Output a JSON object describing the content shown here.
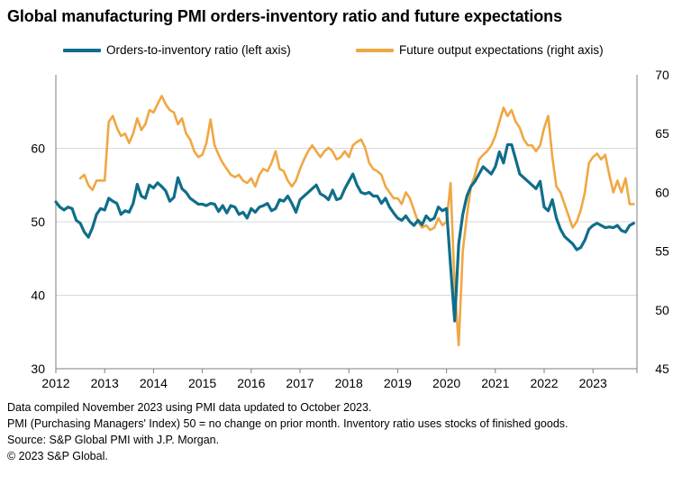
{
  "title": "Global manufacturing PMI orders-inventory ratio and future expectations",
  "colors": {
    "series_orders": "#0f6e8a",
    "series_future": "#f0a742",
    "axis": "#7f7f7f",
    "gridline": "#d9d9d9"
  },
  "notes": [
    "Data compiled November 2023 using PMI data updated to October 2023.",
    "PMI (Purchasing Managers' Index) 50 = no change on prior month. Inventory ratio uses stocks of finished goods.",
    "Source: S&P Global PMI with J.P. Morgan.",
    "© 2023 S&P Global."
  ],
  "chart_data": {
    "type": "line",
    "title": "Global manufacturing PMI orders-inventory ratio and future expectations",
    "x_ticks": [
      "2012",
      "2013",
      "2014",
      "2015",
      "2016",
      "2017",
      "2018",
      "2019",
      "2020",
      "2021",
      "2022",
      "2023"
    ],
    "x_range": [
      2012.0,
      2023.9
    ],
    "ylim_left": [
      30,
      70
    ],
    "yticks_left": [
      30,
      40,
      50,
      60
    ],
    "ylim_right": [
      45,
      70
    ],
    "yticks_right": [
      45,
      50,
      55,
      60,
      65,
      70
    ],
    "grid": "horizontal at left-axis 40, 50 and 60",
    "legend_position": "top",
    "series": [
      {
        "name": "Orders-to-inventory ratio (left axis)",
        "axis": "left",
        "color": "#0f6e8a",
        "points": [
          [
            2012.0,
            52.7
          ],
          [
            2012.083,
            52.0
          ],
          [
            2012.167,
            51.6
          ],
          [
            2012.25,
            52.0
          ],
          [
            2012.333,
            51.8
          ],
          [
            2012.417,
            50.2
          ],
          [
            2012.5,
            49.8
          ],
          [
            2012.583,
            48.6
          ],
          [
            2012.667,
            47.9
          ],
          [
            2012.75,
            49.2
          ],
          [
            2012.833,
            51.0
          ],
          [
            2012.917,
            51.8
          ],
          [
            2013.0,
            51.6
          ],
          [
            2013.083,
            53.2
          ],
          [
            2013.167,
            52.8
          ],
          [
            2013.25,
            52.5
          ],
          [
            2013.333,
            51.0
          ],
          [
            2013.417,
            51.5
          ],
          [
            2013.5,
            51.3
          ],
          [
            2013.583,
            52.5
          ],
          [
            2013.667,
            55.1
          ],
          [
            2013.75,
            53.5
          ],
          [
            2013.833,
            53.2
          ],
          [
            2013.917,
            55.0
          ],
          [
            2014.0,
            54.6
          ],
          [
            2014.083,
            55.3
          ],
          [
            2014.167,
            54.8
          ],
          [
            2014.25,
            54.2
          ],
          [
            2014.333,
            52.8
          ],
          [
            2014.417,
            53.3
          ],
          [
            2014.5,
            56.0
          ],
          [
            2014.583,
            54.5
          ],
          [
            2014.667,
            54.0
          ],
          [
            2014.75,
            53.2
          ],
          [
            2014.833,
            52.8
          ],
          [
            2014.917,
            52.4
          ],
          [
            2015.0,
            52.4
          ],
          [
            2015.083,
            52.2
          ],
          [
            2015.167,
            52.5
          ],
          [
            2015.25,
            52.4
          ],
          [
            2015.333,
            51.4
          ],
          [
            2015.417,
            52.2
          ],
          [
            2015.5,
            51.2
          ],
          [
            2015.583,
            52.2
          ],
          [
            2015.667,
            52.0
          ],
          [
            2015.75,
            51.0
          ],
          [
            2015.833,
            51.3
          ],
          [
            2015.917,
            50.5
          ],
          [
            2016.0,
            51.8
          ],
          [
            2016.083,
            51.3
          ],
          [
            2016.167,
            52.0
          ],
          [
            2016.25,
            52.2
          ],
          [
            2016.333,
            52.5
          ],
          [
            2016.417,
            51.5
          ],
          [
            2016.5,
            51.8
          ],
          [
            2016.583,
            53.0
          ],
          [
            2016.667,
            52.8
          ],
          [
            2016.75,
            53.5
          ],
          [
            2016.833,
            52.5
          ],
          [
            2016.917,
            51.3
          ],
          [
            2017.0,
            53.0
          ],
          [
            2017.083,
            53.5
          ],
          [
            2017.167,
            54.0
          ],
          [
            2017.25,
            54.5
          ],
          [
            2017.333,
            55.0
          ],
          [
            2017.417,
            53.8
          ],
          [
            2017.5,
            53.5
          ],
          [
            2017.583,
            53.0
          ],
          [
            2017.667,
            54.3
          ],
          [
            2017.75,
            53.0
          ],
          [
            2017.833,
            53.2
          ],
          [
            2017.917,
            54.5
          ],
          [
            2018.0,
            55.5
          ],
          [
            2018.083,
            56.5
          ],
          [
            2018.167,
            55.0
          ],
          [
            2018.25,
            54.0
          ],
          [
            2018.333,
            53.8
          ],
          [
            2018.417,
            54.0
          ],
          [
            2018.5,
            53.5
          ],
          [
            2018.583,
            53.5
          ],
          [
            2018.667,
            52.5
          ],
          [
            2018.75,
            53.2
          ],
          [
            2018.833,
            52.0
          ],
          [
            2018.917,
            51.2
          ],
          [
            2019.0,
            50.5
          ],
          [
            2019.083,
            50.2
          ],
          [
            2019.167,
            50.8
          ],
          [
            2019.25,
            50.0
          ],
          [
            2019.333,
            49.5
          ],
          [
            2019.417,
            50.2
          ],
          [
            2019.5,
            49.6
          ],
          [
            2019.583,
            50.8
          ],
          [
            2019.667,
            50.2
          ],
          [
            2019.75,
            50.5
          ],
          [
            2019.833,
            52.0
          ],
          [
            2019.917,
            51.5
          ],
          [
            2020.0,
            51.8
          ],
          [
            2020.083,
            44.0
          ],
          [
            2020.167,
            36.5
          ],
          [
            2020.25,
            47.0
          ],
          [
            2020.333,
            51.0
          ],
          [
            2020.417,
            53.5
          ],
          [
            2020.5,
            54.8
          ],
          [
            2020.583,
            55.5
          ],
          [
            2020.667,
            56.5
          ],
          [
            2020.75,
            57.5
          ],
          [
            2020.833,
            57.0
          ],
          [
            2020.917,
            56.5
          ],
          [
            2021.0,
            57.5
          ],
          [
            2021.083,
            59.5
          ],
          [
            2021.167,
            58.0
          ],
          [
            2021.25,
            60.5
          ],
          [
            2021.333,
            60.5
          ],
          [
            2021.417,
            58.5
          ],
          [
            2021.5,
            56.5
          ],
          [
            2021.583,
            56.0
          ],
          [
            2021.667,
            55.5
          ],
          [
            2021.75,
            55.0
          ],
          [
            2021.833,
            54.5
          ],
          [
            2021.917,
            55.5
          ],
          [
            2022.0,
            52.0
          ],
          [
            2022.083,
            51.5
          ],
          [
            2022.167,
            53.0
          ],
          [
            2022.25,
            50.5
          ],
          [
            2022.333,
            49.0
          ],
          [
            2022.417,
            48.0
          ],
          [
            2022.5,
            47.5
          ],
          [
            2022.583,
            47.0
          ],
          [
            2022.667,
            46.2
          ],
          [
            2022.75,
            46.5
          ],
          [
            2022.833,
            47.5
          ],
          [
            2022.917,
            49.0
          ],
          [
            2023.0,
            49.5
          ],
          [
            2023.083,
            49.8
          ],
          [
            2023.167,
            49.5
          ],
          [
            2023.25,
            49.2
          ],
          [
            2023.333,
            49.3
          ],
          [
            2023.417,
            49.2
          ],
          [
            2023.5,
            49.5
          ],
          [
            2023.583,
            48.8
          ],
          [
            2023.667,
            48.6
          ],
          [
            2023.75,
            49.5
          ],
          [
            2023.833,
            49.8
          ]
        ]
      },
      {
        "name": "Future output expectations (right axis)",
        "axis": "right",
        "color": "#f0a742",
        "points": [
          [
            2012.5,
            61.2
          ],
          [
            2012.583,
            61.5
          ],
          [
            2012.667,
            60.6
          ],
          [
            2012.75,
            60.2
          ],
          [
            2012.833,
            61.0
          ],
          [
            2012.917,
            61.0
          ],
          [
            2013.0,
            61.0
          ],
          [
            2013.083,
            66.0
          ],
          [
            2013.167,
            66.5
          ],
          [
            2013.25,
            65.5
          ],
          [
            2013.333,
            64.8
          ],
          [
            2013.417,
            65.0
          ],
          [
            2013.5,
            64.2
          ],
          [
            2013.583,
            65.0
          ],
          [
            2013.667,
            66.3
          ],
          [
            2013.75,
            65.3
          ],
          [
            2013.833,
            65.8
          ],
          [
            2013.917,
            67.0
          ],
          [
            2014.0,
            66.8
          ],
          [
            2014.083,
            67.5
          ],
          [
            2014.167,
            68.2
          ],
          [
            2014.25,
            67.5
          ],
          [
            2014.333,
            67.0
          ],
          [
            2014.417,
            66.8
          ],
          [
            2014.5,
            65.8
          ],
          [
            2014.583,
            66.3
          ],
          [
            2014.667,
            65.0
          ],
          [
            2014.75,
            64.5
          ],
          [
            2014.833,
            63.5
          ],
          [
            2014.917,
            63.0
          ],
          [
            2015.0,
            63.2
          ],
          [
            2015.083,
            64.2
          ],
          [
            2015.167,
            66.2
          ],
          [
            2015.25,
            64.0
          ],
          [
            2015.333,
            63.2
          ],
          [
            2015.417,
            62.5
          ],
          [
            2015.5,
            62.0
          ],
          [
            2015.583,
            61.5
          ],
          [
            2015.667,
            61.3
          ],
          [
            2015.75,
            61.5
          ],
          [
            2015.833,
            61.0
          ],
          [
            2015.917,
            60.8
          ],
          [
            2016.0,
            61.2
          ],
          [
            2016.083,
            60.5
          ],
          [
            2016.167,
            61.5
          ],
          [
            2016.25,
            62.0
          ],
          [
            2016.333,
            61.8
          ],
          [
            2016.417,
            62.5
          ],
          [
            2016.5,
            63.5
          ],
          [
            2016.583,
            62.0
          ],
          [
            2016.667,
            61.8
          ],
          [
            2016.75,
            61.0
          ],
          [
            2016.833,
            60.5
          ],
          [
            2016.917,
            61.0
          ],
          [
            2017.0,
            62.0
          ],
          [
            2017.083,
            62.8
          ],
          [
            2017.167,
            63.5
          ],
          [
            2017.25,
            64.0
          ],
          [
            2017.333,
            63.5
          ],
          [
            2017.417,
            63.0
          ],
          [
            2017.5,
            63.5
          ],
          [
            2017.583,
            63.8
          ],
          [
            2017.667,
            63.5
          ],
          [
            2017.75,
            62.8
          ],
          [
            2017.833,
            63.0
          ],
          [
            2017.917,
            63.5
          ],
          [
            2018.0,
            63.0
          ],
          [
            2018.083,
            64.0
          ],
          [
            2018.167,
            64.3
          ],
          [
            2018.25,
            64.5
          ],
          [
            2018.333,
            63.8
          ],
          [
            2018.417,
            62.5
          ],
          [
            2018.5,
            62.0
          ],
          [
            2018.583,
            61.8
          ],
          [
            2018.667,
            61.5
          ],
          [
            2018.75,
            60.5
          ],
          [
            2018.833,
            60.0
          ],
          [
            2018.917,
            59.5
          ],
          [
            2019.0,
            59.5
          ],
          [
            2019.083,
            59.0
          ],
          [
            2019.167,
            60.0
          ],
          [
            2019.25,
            59.5
          ],
          [
            2019.333,
            58.5
          ],
          [
            2019.417,
            57.5
          ],
          [
            2019.5,
            57.0
          ],
          [
            2019.583,
            57.2
          ],
          [
            2019.667,
            56.8
          ],
          [
            2019.75,
            57.0
          ],
          [
            2019.833,
            57.8
          ],
          [
            2019.917,
            57.2
          ],
          [
            2020.0,
            57.5
          ],
          [
            2020.083,
            60.8
          ],
          [
            2020.167,
            52.0
          ],
          [
            2020.25,
            47.0
          ],
          [
            2020.333,
            55.0
          ],
          [
            2020.417,
            58.0
          ],
          [
            2020.5,
            60.5
          ],
          [
            2020.583,
            61.5
          ],
          [
            2020.667,
            62.8
          ],
          [
            2020.75,
            63.2
          ],
          [
            2020.833,
            63.5
          ],
          [
            2020.917,
            64.0
          ],
          [
            2021.0,
            64.8
          ],
          [
            2021.083,
            66.0
          ],
          [
            2021.167,
            67.2
          ],
          [
            2021.25,
            66.5
          ],
          [
            2021.333,
            67.0
          ],
          [
            2021.417,
            66.0
          ],
          [
            2021.5,
            65.5
          ],
          [
            2021.583,
            64.5
          ],
          [
            2021.667,
            64.0
          ],
          [
            2021.75,
            64.0
          ],
          [
            2021.833,
            63.5
          ],
          [
            2021.917,
            64.0
          ],
          [
            2022.0,
            65.5
          ],
          [
            2022.083,
            66.5
          ],
          [
            2022.167,
            63.0
          ],
          [
            2022.25,
            60.5
          ],
          [
            2022.333,
            60.0
          ],
          [
            2022.417,
            59.0
          ],
          [
            2022.5,
            58.0
          ],
          [
            2022.583,
            57.0
          ],
          [
            2022.667,
            57.5
          ],
          [
            2022.75,
            58.5
          ],
          [
            2022.833,
            60.0
          ],
          [
            2022.917,
            62.5
          ],
          [
            2023.0,
            63.0
          ],
          [
            2023.083,
            63.3
          ],
          [
            2023.167,
            62.8
          ],
          [
            2023.25,
            63.2
          ],
          [
            2023.333,
            61.5
          ],
          [
            2023.417,
            60.0
          ],
          [
            2023.5,
            61.0
          ],
          [
            2023.583,
            60.0
          ],
          [
            2023.667,
            61.2
          ],
          [
            2023.75,
            59.0
          ],
          [
            2023.833,
            59.0
          ]
        ]
      }
    ]
  }
}
